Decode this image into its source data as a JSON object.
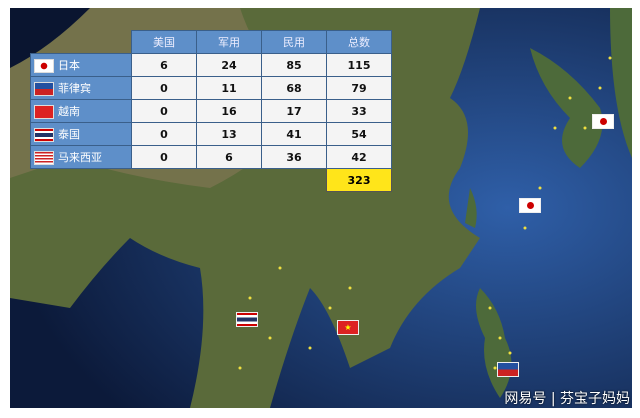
{
  "table": {
    "headers": [
      "美国",
      "军用",
      "民用",
      "总数"
    ],
    "rows": [
      {
        "country": "日本",
        "flag": "japan-flag",
        "values": [
          "6",
          "24",
          "85",
          "115"
        ]
      },
      {
        "country": "菲律宾",
        "flag": "philippines-flag",
        "values": [
          "0",
          "11",
          "68",
          "79"
        ]
      },
      {
        "country": "越南",
        "flag": "vietnam-flag",
        "values": [
          "0",
          "16",
          "17",
          "33"
        ]
      },
      {
        "country": "泰国",
        "flag": "thailand-flag",
        "values": [
          "0",
          "13",
          "41",
          "54"
        ]
      },
      {
        "country": "马来西亚",
        "flag": "malaysia-flag",
        "values": [
          "0",
          "6",
          "36",
          "42"
        ]
      }
    ],
    "grand_total": "323"
  },
  "colors": {
    "header": "#5e8fc9",
    "total_highlight": "#ffe51a",
    "marker": "#f0e040"
  },
  "watermark": "网易号 | 芬宝子妈妈"
}
